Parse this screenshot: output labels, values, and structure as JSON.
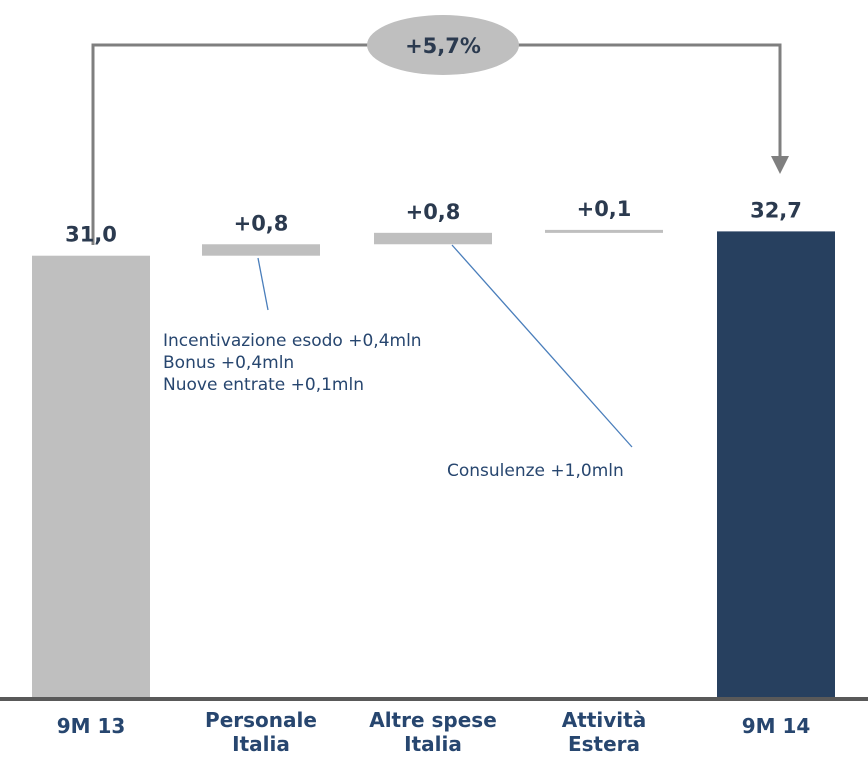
{
  "chart_data": {
    "type": "bar",
    "subtype": "waterfall",
    "categories": [
      "9M 13",
      "Personale\nItalia",
      "Altre spese\nItalia",
      "Attività\nEstera",
      "9M 14"
    ],
    "values": [
      31.0,
      0.8,
      0.8,
      0.1,
      32.7
    ],
    "value_labels": [
      "31,0",
      "+0,8",
      "+0,8",
      "+0,1",
      "32,7"
    ],
    "kinds": [
      "total",
      "delta",
      "delta",
      "delta",
      "total"
    ],
    "growth_label": "+5,7%",
    "annotations": [
      {
        "bar": 1,
        "lines": [
          "Incentivazione esodo +0,4mln",
          "Bonus +0,4mln",
          "Nuove entrate +0,1mln"
        ]
      },
      {
        "bar": 2,
        "lines": [
          "Consulenze +1,0mln"
        ]
      }
    ],
    "colors": {
      "start_total": "#bfbfbf",
      "delta": "#bfbfbf",
      "end_total": "#27405f",
      "text": "#27466f",
      "leader": "#4a7ebb",
      "connector": "#7f7f7f",
      "axis": "#595959"
    },
    "ylim": [
      0,
      35
    ]
  }
}
